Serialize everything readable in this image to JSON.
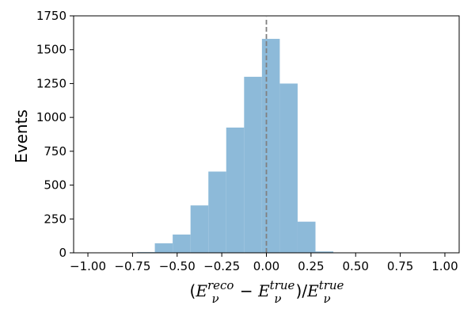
{
  "chart_data": {
    "type": "bar",
    "title": "",
    "ylabel": "Events",
    "xlabel_parts": {
      "open_paren": "(",
      "E": "E",
      "nu": "ν",
      "reco": "reco",
      "minus": " − ",
      "true": "true",
      "close_div": ")/"
    },
    "xlim": [
      -1.08,
      1.08
    ],
    "ylim": [
      0,
      1750
    ],
    "x_ticks": [
      -1.0,
      -0.75,
      -0.5,
      -0.25,
      0.0,
      0.25,
      0.5,
      0.75,
      1.0
    ],
    "x_tick_labels": [
      "−1.00",
      "−0.75",
      "−0.50",
      "−0.25",
      "0.00",
      "0.25",
      "0.50",
      "0.75",
      "1.00"
    ],
    "y_ticks": [
      0,
      250,
      500,
      750,
      1000,
      1250,
      1500,
      1750
    ],
    "y_tick_labels": [
      "0",
      "250",
      "500",
      "750",
      "1000",
      "1250",
      "1500",
      "1750"
    ],
    "bin_width": 0.1,
    "bins": [
      {
        "x0": -0.725,
        "value": 5
      },
      {
        "x0": -0.625,
        "value": 70
      },
      {
        "x0": -0.525,
        "value": 135
      },
      {
        "x0": -0.425,
        "value": 350
      },
      {
        "x0": -0.325,
        "value": 600
      },
      {
        "x0": -0.225,
        "value": 925
      },
      {
        "x0": -0.125,
        "value": 1300
      },
      {
        "x0": -0.025,
        "value": 1580
      },
      {
        "x0": 0.075,
        "value": 1250
      },
      {
        "x0": 0.175,
        "value": 230
      },
      {
        "x0": 0.275,
        "value": 10
      }
    ],
    "reference_line": {
      "x": 0.0,
      "y_top": 1740,
      "style": "dashed"
    },
    "bar_color": "#8dbad9",
    "ref_line_color": "#808080",
    "grid": false,
    "legend": "none"
  }
}
